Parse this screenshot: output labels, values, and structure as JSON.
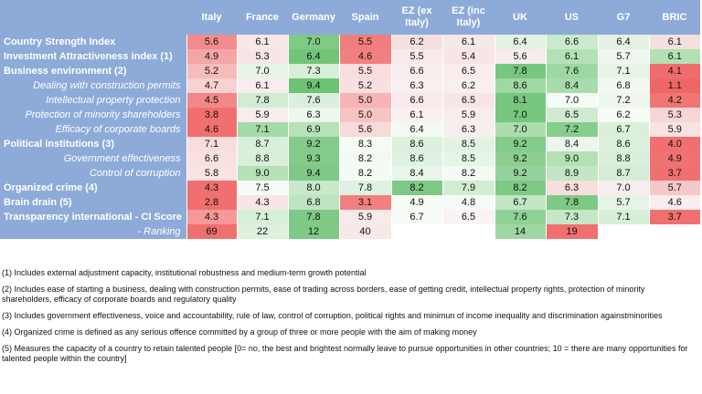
{
  "table": {
    "columns": [
      "Italy",
      "France",
      "Germany",
      "Spain",
      "EZ (ex Italy)",
      "EZ (inc Italy)",
      "UK",
      "US",
      "G7",
      "BRIC"
    ],
    "rows": [
      {
        "label": "Country Strength Index",
        "type": "sec",
        "values": [
          "5.6",
          "6.1",
          "7.0",
          "5.5",
          "6.2",
          "6.1",
          "6.4",
          "6.6",
          "6.4",
          "6.1"
        ],
        "colors": [
          "#f28b8b",
          "#f8e8e8",
          "#7fcb85",
          "#f27d7d",
          "#f5e0e0",
          "#f7e8e8",
          "#e3f2e3",
          "#cbeacd",
          "#e3f2e3",
          "#f5e0e0"
        ]
      },
      {
        "label": "Investment Attractiveness index (1)",
        "type": "sec",
        "values": [
          "4.9",
          "5.3",
          "6.4",
          "4.6",
          "5.5",
          "5.4",
          "5.6",
          "6.1",
          "5.7",
          "6.1"
        ],
        "colors": [
          "#f4a5a5",
          "#f8e6e6",
          "#72c479",
          "#f28080",
          "#f7eaea",
          "#f8e6e6",
          "#f8eded",
          "#b3e0b5",
          "#eef6ee",
          "#b3e0b5"
        ]
      },
      {
        "label": "Business environment (2)",
        "type": "sec",
        "values": [
          "5.2",
          "7.0",
          "7.3",
          "5.5",
          "6.6",
          "6.5",
          "7.8",
          "7.6",
          "7.1",
          "4.1"
        ],
        "colors": [
          "#f6bcbc",
          "#e7f4e7",
          "#d7efd8",
          "#f9dcdc",
          "#f8eeee",
          "#f9eded",
          "#77c77e",
          "#9dd7a1",
          "#e7f4e7",
          "#f06d6d"
        ]
      },
      {
        "label": "Dealing with construction permits",
        "type": "sub",
        "values": [
          "4.7",
          "6.1",
          "9.4",
          "5.2",
          "6.3",
          "6.2",
          "8.6",
          "8.4",
          "6.8",
          "1.1"
        ],
        "colors": [
          "#f8d2d2",
          "#f8eded",
          "#6dc274",
          "#f9e0e0",
          "#f8f0f0",
          "#f8f0f0",
          "#9fd8a3",
          "#a9dcac",
          "#f0f8f0",
          "#ee6666"
        ]
      },
      {
        "label": "Intellectual property protection",
        "type": "sub",
        "values": [
          "4.5",
          "7.8",
          "7.6",
          "5.0",
          "6.6",
          "6.5",
          "8.1",
          "7.0",
          "7.2",
          "4.2"
        ],
        "colors": [
          "#f28888",
          "#d1ecd2",
          "#dbf0dc",
          "#f6b4b4",
          "#f8eaea",
          "#f8e6e6",
          "#77c77e",
          "#f5fbf5",
          "#eef7ee",
          "#f07575"
        ]
      },
      {
        "label": "Protection of minority shareholders",
        "type": "sub",
        "values": [
          "3.8",
          "5.9",
          "6.3",
          "5.0",
          "6.1",
          "5.9",
          "7.0",
          "6.5",
          "6.2",
          "5.3"
        ],
        "colors": [
          "#f07070",
          "#f8eded",
          "#eef7ee",
          "#f7c4c4",
          "#f9f1f1",
          "#f8eded",
          "#76c67d",
          "#cfead1",
          "#f6fbf6",
          "#f8d6d6"
        ]
      },
      {
        "label": "Efficacy of corporate boards",
        "type": "sub",
        "values": [
          "4.6",
          "7.1",
          "6.9",
          "5.6",
          "6.4",
          "6.3",
          "7.0",
          "7.2",
          "6.7",
          "5.9"
        ],
        "colors": [
          "#f06f6f",
          "#a4d9a8",
          "#b7e1b9",
          "#f9dada",
          "#f3f9f3",
          "#f7eeee",
          "#addcaf",
          "#87ce8d",
          "#daf0db",
          "#f9e2e2"
        ]
      },
      {
        "label": "Political institutions (3)",
        "type": "sec",
        "values": [
          "7.1",
          "8.7",
          "9.2",
          "8.3",
          "8.6",
          "8.5",
          "9.2",
          "8.4",
          "8.6",
          "4.0"
        ],
        "colors": [
          "#f9dddd",
          "#d8efd9",
          "#83cb89",
          "#f5fbf5",
          "#dcf0dd",
          "#e3f3e3",
          "#83cb89",
          "#ecf6ec",
          "#dcf0dd",
          "#f07070"
        ]
      },
      {
        "label": "Government effectiveness",
        "type": "sub",
        "values": [
          "6.6",
          "8.8",
          "9.3",
          "8.2",
          "8.6",
          "8.5",
          "9.2",
          "9.0",
          "8.8",
          "4.9"
        ],
        "colors": [
          "#f9e1e1",
          "#d9efda",
          "#83cb89",
          "#f3f9f3",
          "#e0f2e1",
          "#e7f5e7",
          "#8ccf91",
          "#b3e0b5",
          "#d9efda",
          "#f07373"
        ]
      },
      {
        "label": "Control of corruption",
        "type": "sub",
        "values": [
          "5.8",
          "9.0",
          "9.4",
          "8.2",
          "8.4",
          "8.2",
          "9.2",
          "8.9",
          "8.7",
          "3.7"
        ],
        "colors": [
          "#f9e3e3",
          "#b5e0b8",
          "#7ec988",
          "#f4faf4",
          "#e9f5ea",
          "#f4faf4",
          "#96d29b",
          "#c3e6c5",
          "#d5edd6",
          "#f07070"
        ]
      },
      {
        "label": "Organized crime (4)",
        "type": "sec",
        "values": [
          "4.3",
          "7.5",
          "8.0",
          "7.8",
          "8.2",
          "7.9",
          "8.2",
          "6.3",
          "7.0",
          "5.7"
        ],
        "colors": [
          "#f07070",
          "#f5fbf5",
          "#c7e8c9",
          "#dff1e0",
          "#7fc986",
          "#d3ecd4",
          "#7fc986",
          "#f9dede",
          "#f9eded",
          "#f6c8c8"
        ]
      },
      {
        "label": "Brain drain (5)",
        "type": "sec",
        "values": [
          "2.8",
          "4.3",
          "6.8",
          "3.1",
          "4.9",
          "4.8",
          "6.7",
          "7.8",
          "5.7",
          "4.6"
        ],
        "colors": [
          "#f07070",
          "#f8e6e6",
          "#bde3bf",
          "#f38080",
          "#f6fbf6",
          "#f6fbf6",
          "#c2e5c4",
          "#7fc986",
          "#e5f4e6",
          "#f9eeee"
        ]
      },
      {
        "label": "Transparency international - CI Score",
        "type": "sec",
        "values": [
          "4.3",
          "7.1",
          "7.8",
          "5.9",
          "6.7",
          "6.5",
          "7.6",
          "7.3",
          "7.1",
          "3.7"
        ],
        "colors": [
          "#f49898",
          "#d7efd8",
          "#7fc986",
          "#f9eaea",
          "#f5fbf5",
          "#f9f3f3",
          "#90d196",
          "#c5e7c7",
          "#d7efd8",
          "#f07070"
        ]
      },
      {
        "label": "- Ranking",
        "type": "sub",
        "values": [
          "69",
          "22",
          "12",
          "40",
          "",
          "",
          "14",
          "19",
          "",
          ""
        ],
        "colors": [
          "#f07070",
          "#ddf1de",
          "#7fc986",
          "#f9e8e8",
          "#ffffff",
          "#ffffff",
          "#9dd7a1",
          "#f07070",
          "#ffffff",
          "#ffffff"
        ]
      }
    ]
  },
  "notes": [
    "(1) Includes external adjustment capacity, institutional robustness and medium-term growth potential",
    "(2) Includes ease of starting a business, dealing with construction permits, ease of trading across borders, ease of getting credit, intellectual property rights, protection of minority shareholders, efficacy of corporate boards and regulatory quality",
    "(3) Includes government effectiveness, voice and accountability, rule of law, control of corruption, political rights and minimun of income inequality and discrimination againstminorities",
    "(4) Organized crime is defined as any serious offence committed by a group of three or more people with the aim of making money",
    "(5) Measures the capacity of a country to retain talented people [0= no, the best and brightest normally leave to pursue opportunities in other countries; 10 = there are many opportunities for talented people within the country]"
  ]
}
